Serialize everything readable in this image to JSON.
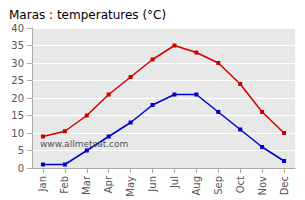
{
  "chart_data": {
    "type": "line",
    "title": "Maras : temperatures (°C)",
    "categories": [
      "Jan",
      "Feb",
      "Mar",
      "Apr",
      "May",
      "Jun",
      "Jul",
      "Aug",
      "Sep",
      "Oct",
      "Nov",
      "Dec"
    ],
    "series": [
      {
        "color": "#cc0000",
        "values": [
          9,
          10.5,
          15,
          21,
          26,
          31,
          35,
          33,
          30,
          24,
          16,
          10
        ]
      },
      {
        "color": "#0000cc",
        "values": [
          1,
          1,
          5,
          9,
          13,
          18,
          21,
          21,
          16,
          11,
          6,
          2
        ]
      }
    ],
    "ylim": [
      0,
      40
    ],
    "yticks": [
      0,
      5,
      10,
      15,
      20,
      25,
      30,
      35,
      40
    ],
    "grid": true,
    "marker": "square",
    "annotations": [
      "www.allmetsat.com"
    ]
  }
}
